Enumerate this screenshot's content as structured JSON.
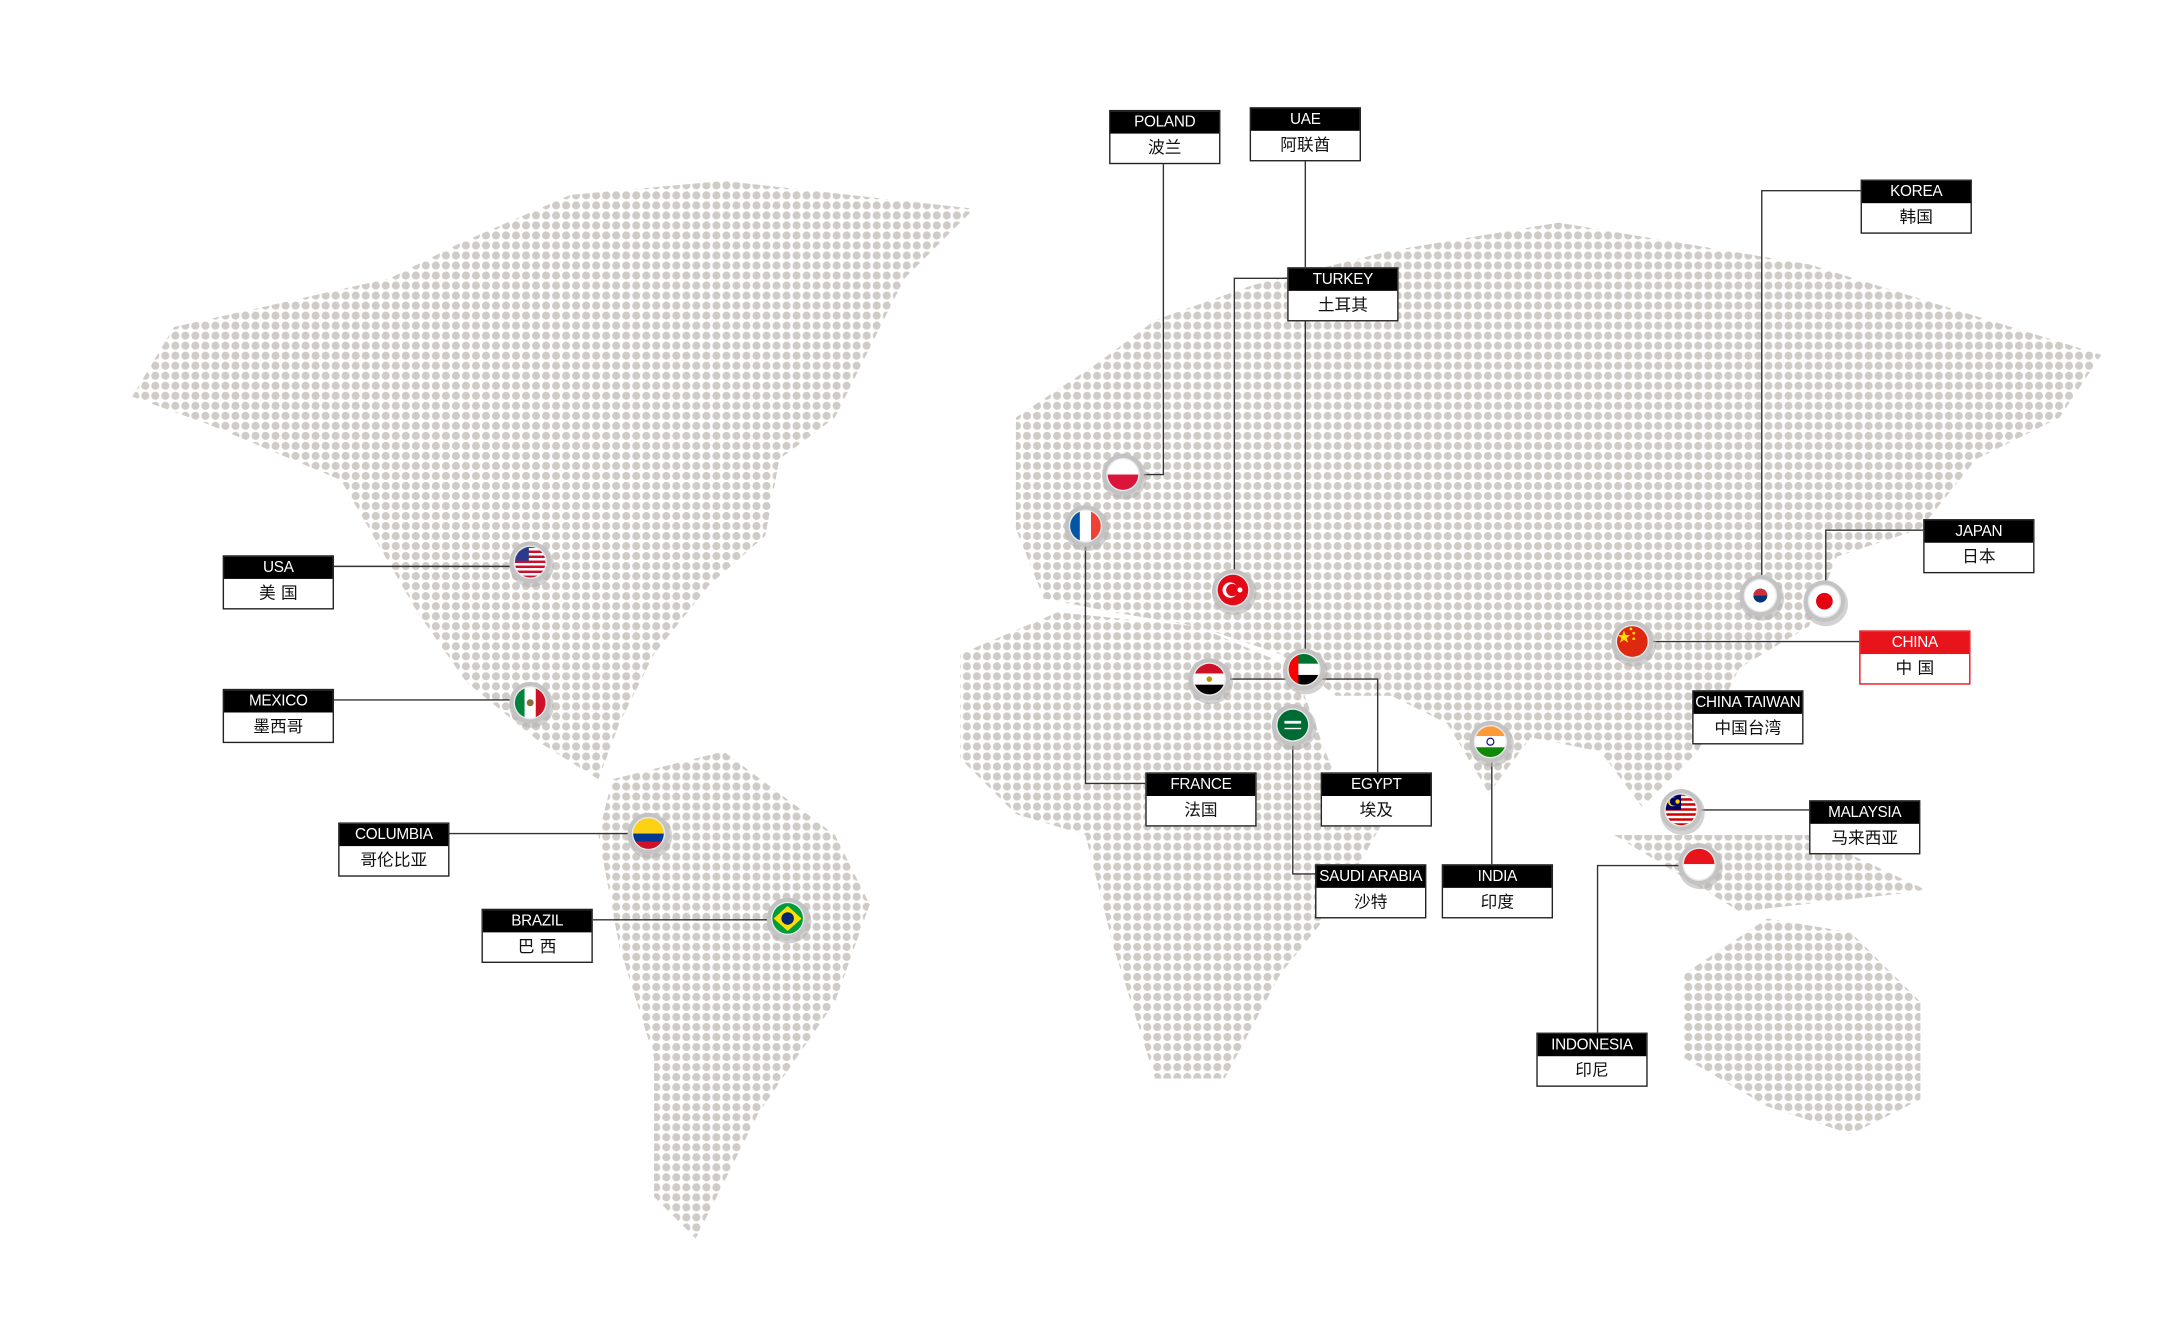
{
  "map": {
    "dot_color": "#cfcbc6",
    "line_color": "#333333",
    "highlight_color": "#e8141c"
  },
  "countries": [
    {
      "id": "usa",
      "en": "USA",
      "zh": "美 国",
      "flag": "usa-flag-icon"
    },
    {
      "id": "mexico",
      "en": "MEXICO",
      "zh": "墨西哥",
      "flag": "mexico-flag-icon"
    },
    {
      "id": "columbia",
      "en": "COLUMBIA",
      "zh": "哥伦比亚",
      "flag": "colombia-flag-icon"
    },
    {
      "id": "brazil",
      "en": "BRAZIL",
      "zh": "巴 西",
      "flag": "brazil-flag-icon"
    },
    {
      "id": "poland",
      "en": "POLAND",
      "zh": "波兰",
      "flag": "poland-flag-icon"
    },
    {
      "id": "uae",
      "en": "UAE",
      "zh": "阿联酋",
      "flag": "uae-flag-icon"
    },
    {
      "id": "turkey",
      "en": "TURKEY",
      "zh": "土耳其",
      "flag": "turkey-flag-icon"
    },
    {
      "id": "france",
      "en": "FRANCE",
      "zh": "法国",
      "flag": "france-flag-icon"
    },
    {
      "id": "egypt",
      "en": "EGYPT",
      "zh": "埃及",
      "flag": "egypt-flag-icon"
    },
    {
      "id": "saudi",
      "en": "SAUDI ARABIA",
      "zh": "沙特",
      "flag": "saudi-flag-icon"
    },
    {
      "id": "india",
      "en": "INDIA",
      "zh": "印度",
      "flag": "india-flag-icon"
    },
    {
      "id": "korea",
      "en": "KOREA",
      "zh": "韩国",
      "flag": "korea-flag-icon"
    },
    {
      "id": "japan",
      "en": "JAPAN",
      "zh": "日本",
      "flag": "japan-flag-icon"
    },
    {
      "id": "china",
      "en": "CHINA",
      "zh": "中 国",
      "flag": "china-flag-icon",
      "highlight": true
    },
    {
      "id": "taiwan",
      "en": "CHINA TAIWAN",
      "zh": "中国台湾"
    },
    {
      "id": "malaysia",
      "en": "MALAYSIA",
      "zh": "马来西亚",
      "flag": "malaysia-flag-icon"
    },
    {
      "id": "indonesia",
      "en": "INDONESIA",
      "zh": "印尼",
      "flag": "indonesia-flag-icon"
    }
  ]
}
